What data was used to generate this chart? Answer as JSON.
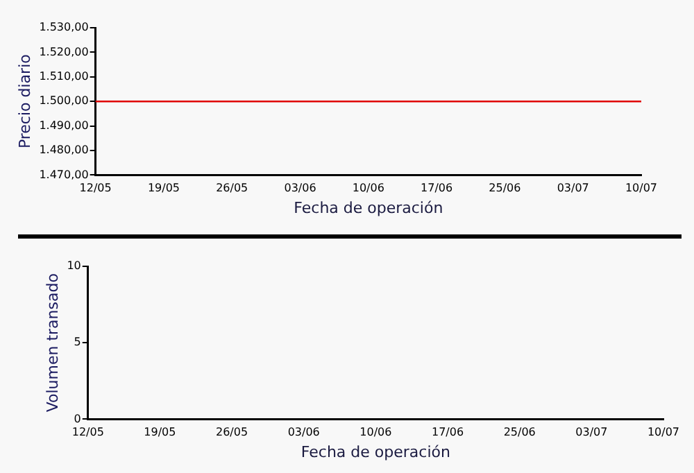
{
  "chart_data": [
    {
      "type": "line",
      "xlabel": "Fecha de operación",
      "ylabel": "Precio diario",
      "categories": [
        "12/05",
        "19/05",
        "26/05",
        "03/06",
        "10/06",
        "17/06",
        "25/06",
        "03/07",
        "10/07"
      ],
      "series": [
        {
          "color": "#e00000",
          "values": [
            1500,
            1500,
            1500,
            1500,
            1500,
            1500,
            1500,
            1500,
            1500
          ]
        }
      ],
      "ylim": [
        1470,
        1530
      ],
      "yticks": [
        {
          "value": 1470,
          "label": "1.470,00"
        },
        {
          "value": 1480,
          "label": "1.480,00"
        },
        {
          "value": 1490,
          "label": "1.490,00"
        },
        {
          "value": 1500,
          "label": "1.500,00"
        },
        {
          "value": 1510,
          "label": "1.510,00"
        },
        {
          "value": 1520,
          "label": "1.520,00"
        },
        {
          "value": 1530,
          "label": "1.530,00"
        }
      ],
      "grid": false,
      "legend": false,
      "marker": "none"
    },
    {
      "type": "bar",
      "xlabel": "Fecha de operación",
      "ylabel": "Volumen transado",
      "categories": [
        "12/05",
        "19/05",
        "26/05",
        "03/06",
        "10/06",
        "17/06",
        "25/06",
        "03/07",
        "10/07"
      ],
      "series": [
        {
          "values": [
            0,
            0,
            0,
            0,
            0,
            0,
            0,
            0,
            0
          ]
        }
      ],
      "ylim": [
        0,
        10
      ],
      "yticks": [
        0,
        5,
        10
      ],
      "grid": false,
      "legend": false
    }
  ]
}
